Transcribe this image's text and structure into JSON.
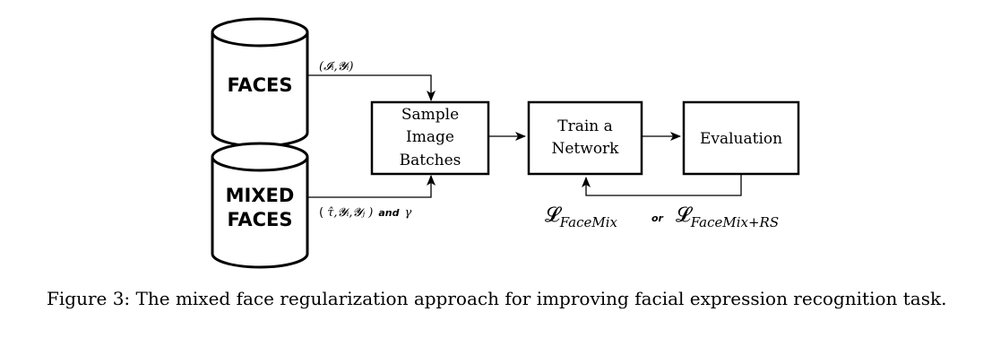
{
  "nodes": {
    "faces_db": {
      "label": "FACES"
    },
    "mixed_faces_db": {
      "label_lines": [
        "MIXED",
        "FACES"
      ]
    },
    "sample_batches": {
      "label_lines": [
        "Sample",
        "Image",
        "Batches"
      ]
    },
    "train_network": {
      "label_lines": [
        "Train a",
        "Network"
      ]
    },
    "evaluation": {
      "label": "Evaluation"
    }
  },
  "edges": {
    "faces_to_sample": {
      "label": "(𝓘ᵢ,𝓨ᵢ)"
    },
    "mixed_to_sample": {
      "label_a": "( ",
      "label_tau": "τ̂",
      "label_b": ",𝓨ᵢ,𝓨ⱼ )",
      "and_word": "and",
      "label_gamma": "γ"
    },
    "sample_to_train": {
      "label": ""
    },
    "train_to_eval": {
      "label": ""
    },
    "eval_to_train": {
      "loss_symbol": "𝓛",
      "loss1_sub": "FaceMix",
      "or_word": "or",
      "loss2_sub": "FaceMix+RS"
    }
  },
  "caption": {
    "text": "Figure 3: The mixed face regularization approach for improving facial expression recognition task."
  }
}
